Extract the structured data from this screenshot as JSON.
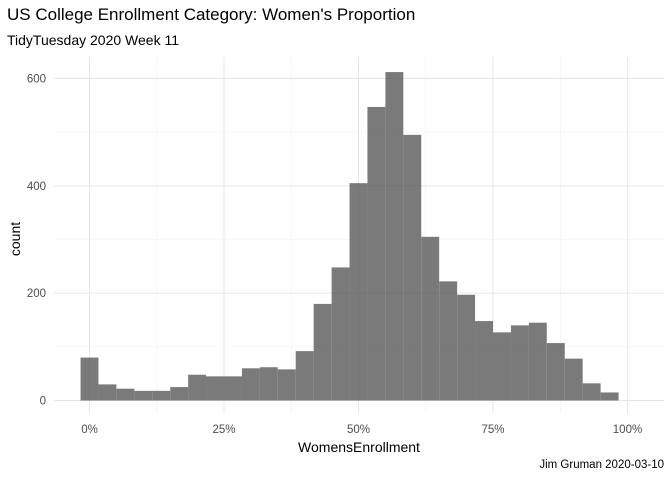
{
  "chart_data": {
    "type": "bar",
    "subtype": "histogram",
    "title": "US College Enrollment Category: Women's Proportion",
    "subtitle": "TidyTuesday 2020 Week 11",
    "caption": "Jim Gruman 2020-03-10",
    "xlabel": "WomensEnrollment",
    "ylabel": "count",
    "xlim": [
      0,
      1.0
    ],
    "ylim": [
      0,
      650
    ],
    "bin_width": 0.0333,
    "x_ticks": [
      0,
      0.25,
      0.5,
      0.75,
      1.0
    ],
    "x_tick_labels": [
      "0%",
      "25%",
      "50%",
      "75%",
      "100%"
    ],
    "y_ticks": [
      0,
      200,
      400,
      600
    ],
    "y_tick_labels": [
      "0",
      "200",
      "400",
      "600"
    ],
    "grid": true,
    "bar_color": "#595959",
    "bin_centers": [
      0.0,
      0.0333,
      0.0667,
      0.1,
      0.1333,
      0.1667,
      0.2,
      0.2333,
      0.2667,
      0.3,
      0.3333,
      0.3667,
      0.4,
      0.4333,
      0.4667,
      0.5,
      0.5333,
      0.5667,
      0.6,
      0.6333,
      0.6667,
      0.7,
      0.7333,
      0.7667,
      0.8,
      0.8333,
      0.8667,
      0.9,
      0.9333,
      0.9667,
      1.0
    ],
    "values": [
      80,
      30,
      22,
      18,
      18,
      25,
      48,
      45,
      45,
      60,
      62,
      58,
      92,
      180,
      248,
      405,
      547,
      612,
      495,
      305,
      222,
      197,
      148,
      127,
      140,
      145,
      107,
      78,
      32,
      15,
      0
    ]
  }
}
